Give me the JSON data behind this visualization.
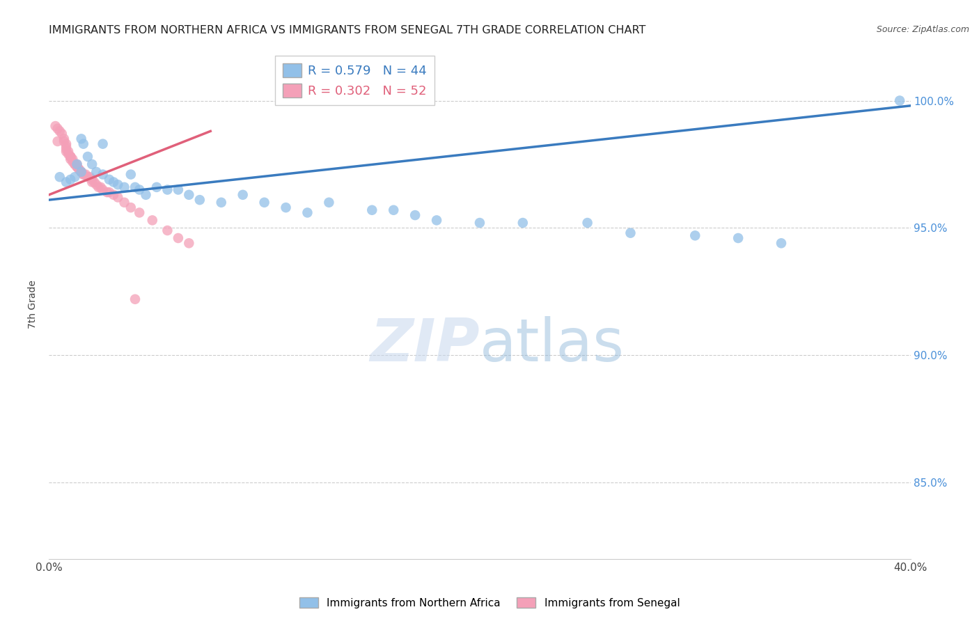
{
  "title": "IMMIGRANTS FROM NORTHERN AFRICA VS IMMIGRANTS FROM SENEGAL 7TH GRADE CORRELATION CHART",
  "source": "Source: ZipAtlas.com",
  "ylabel": "7th Grade",
  "ytick_labels": [
    "100.0%",
    "95.0%",
    "90.0%",
    "85.0%"
  ],
  "ytick_values": [
    1.0,
    0.95,
    0.9,
    0.85
  ],
  "xlim": [
    0.0,
    0.4
  ],
  "ylim": [
    0.82,
    1.02
  ],
  "legend_label1": "Immigrants from Northern Africa",
  "legend_label2": "Immigrants from Senegal",
  "r1": 0.579,
  "n1": 44,
  "r2": 0.302,
  "n2": 52,
  "color_blue": "#92c0e8",
  "color_pink": "#f4a0b8",
  "line_color_blue": "#3a7bbf",
  "line_color_pink": "#e0607a",
  "blue_line_x": [
    0.0,
    0.4
  ],
  "blue_line_y": [
    0.961,
    0.998
  ],
  "pink_line_x": [
    0.0,
    0.075
  ],
  "pink_line_y": [
    0.963,
    0.988
  ],
  "blue_points_x": [
    0.005,
    0.008,
    0.01,
    0.012,
    0.013,
    0.015,
    0.015,
    0.016,
    0.018,
    0.02,
    0.022,
    0.025,
    0.025,
    0.028,
    0.03,
    0.032,
    0.035,
    0.038,
    0.04,
    0.042,
    0.045,
    0.05,
    0.055,
    0.06,
    0.065,
    0.07,
    0.08,
    0.09,
    0.1,
    0.11,
    0.12,
    0.13,
    0.15,
    0.16,
    0.17,
    0.18,
    0.2,
    0.22,
    0.25,
    0.27,
    0.3,
    0.32,
    0.34,
    0.395
  ],
  "blue_points_y": [
    0.97,
    0.968,
    0.969,
    0.97,
    0.975,
    0.972,
    0.985,
    0.983,
    0.978,
    0.975,
    0.972,
    0.971,
    0.983,
    0.969,
    0.968,
    0.967,
    0.966,
    0.971,
    0.966,
    0.965,
    0.963,
    0.966,
    0.965,
    0.965,
    0.963,
    0.961,
    0.96,
    0.963,
    0.96,
    0.958,
    0.956,
    0.96,
    0.957,
    0.957,
    0.955,
    0.953,
    0.952,
    0.952,
    0.952,
    0.948,
    0.947,
    0.946,
    0.944,
    1.0
  ],
  "pink_points_x": [
    0.003,
    0.004,
    0.005,
    0.006,
    0.007,
    0.007,
    0.008,
    0.008,
    0.008,
    0.009,
    0.009,
    0.01,
    0.01,
    0.01,
    0.011,
    0.011,
    0.012,
    0.012,
    0.013,
    0.013,
    0.014,
    0.014,
    0.015,
    0.015,
    0.016,
    0.017,
    0.018,
    0.019,
    0.02,
    0.02,
    0.021,
    0.022,
    0.023,
    0.024,
    0.025,
    0.027,
    0.028,
    0.03,
    0.032,
    0.035,
    0.038,
    0.042,
    0.048,
    0.055,
    0.06,
    0.065,
    0.004,
    0.008,
    0.01,
    0.013,
    0.016,
    0.04
  ],
  "pink_points_y": [
    0.99,
    0.989,
    0.988,
    0.987,
    0.985,
    0.984,
    0.983,
    0.982,
    0.98,
    0.98,
    0.979,
    0.978,
    0.978,
    0.977,
    0.977,
    0.976,
    0.975,
    0.975,
    0.974,
    0.974,
    0.973,
    0.973,
    0.972,
    0.972,
    0.971,
    0.971,
    0.97,
    0.97,
    0.969,
    0.968,
    0.968,
    0.967,
    0.966,
    0.966,
    0.965,
    0.964,
    0.964,
    0.963,
    0.962,
    0.96,
    0.958,
    0.956,
    0.953,
    0.949,
    0.946,
    0.944,
    0.984,
    0.981,
    0.978,
    0.975,
    0.971,
    0.922
  ],
  "watermark_zip": "ZIP",
  "watermark_atlas": "atlas",
  "background_color": "#ffffff",
  "grid_color": "#cccccc"
}
